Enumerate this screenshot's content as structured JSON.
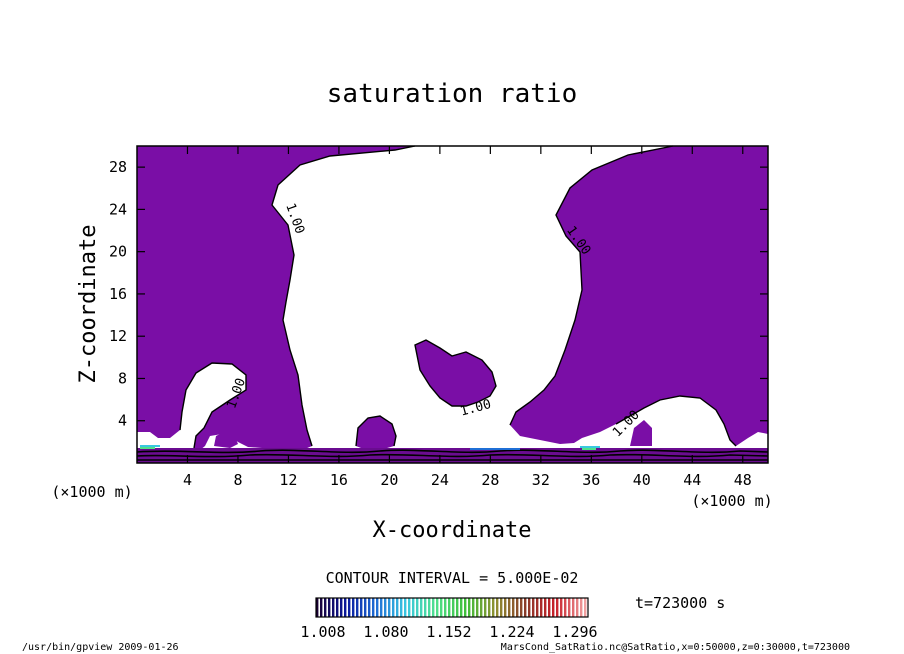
{
  "chart_data": {
    "type": "contour",
    "title": "saturation ratio",
    "xlabel": "X-coordinate",
    "ylabel": "Z-coordinate",
    "x_unit_label": "(×1000 m)",
    "y_unit_label": "(×1000 m)",
    "xlim": [
      0,
      50
    ],
    "ylim": [
      0,
      30
    ],
    "x_ticks": [
      4,
      8,
      12,
      16,
      20,
      24,
      28,
      32,
      36,
      40,
      44,
      48
    ],
    "y_ticks": [
      4,
      8,
      12,
      16,
      20,
      24,
      28
    ],
    "contour_level_label": "1.00",
    "shaded_region_color": "#7a0ea6",
    "contour_interval_text": "CONTOUR INTERVAL = 5.000E-02",
    "colorbar_tick_labels": [
      "1.008",
      "1.080",
      "1.152",
      "1.224",
      "1.296"
    ],
    "colorbar_colors": [
      "#1a0033",
      "#0a1a9e",
      "#1f6fd6",
      "#39c8e0",
      "#4fe08a",
      "#3fbf3a",
      "#8f8f30",
      "#8a3a2a",
      "#c8202a",
      "#f0a0a0"
    ],
    "time_text": "t=723000 s"
  },
  "footer": {
    "left": "/usr/bin/gpview  2009-01-26",
    "right": "MarsCond_SatRatio.nc@SatRatio,x=0:50000,z=0:30000,t=723000"
  }
}
